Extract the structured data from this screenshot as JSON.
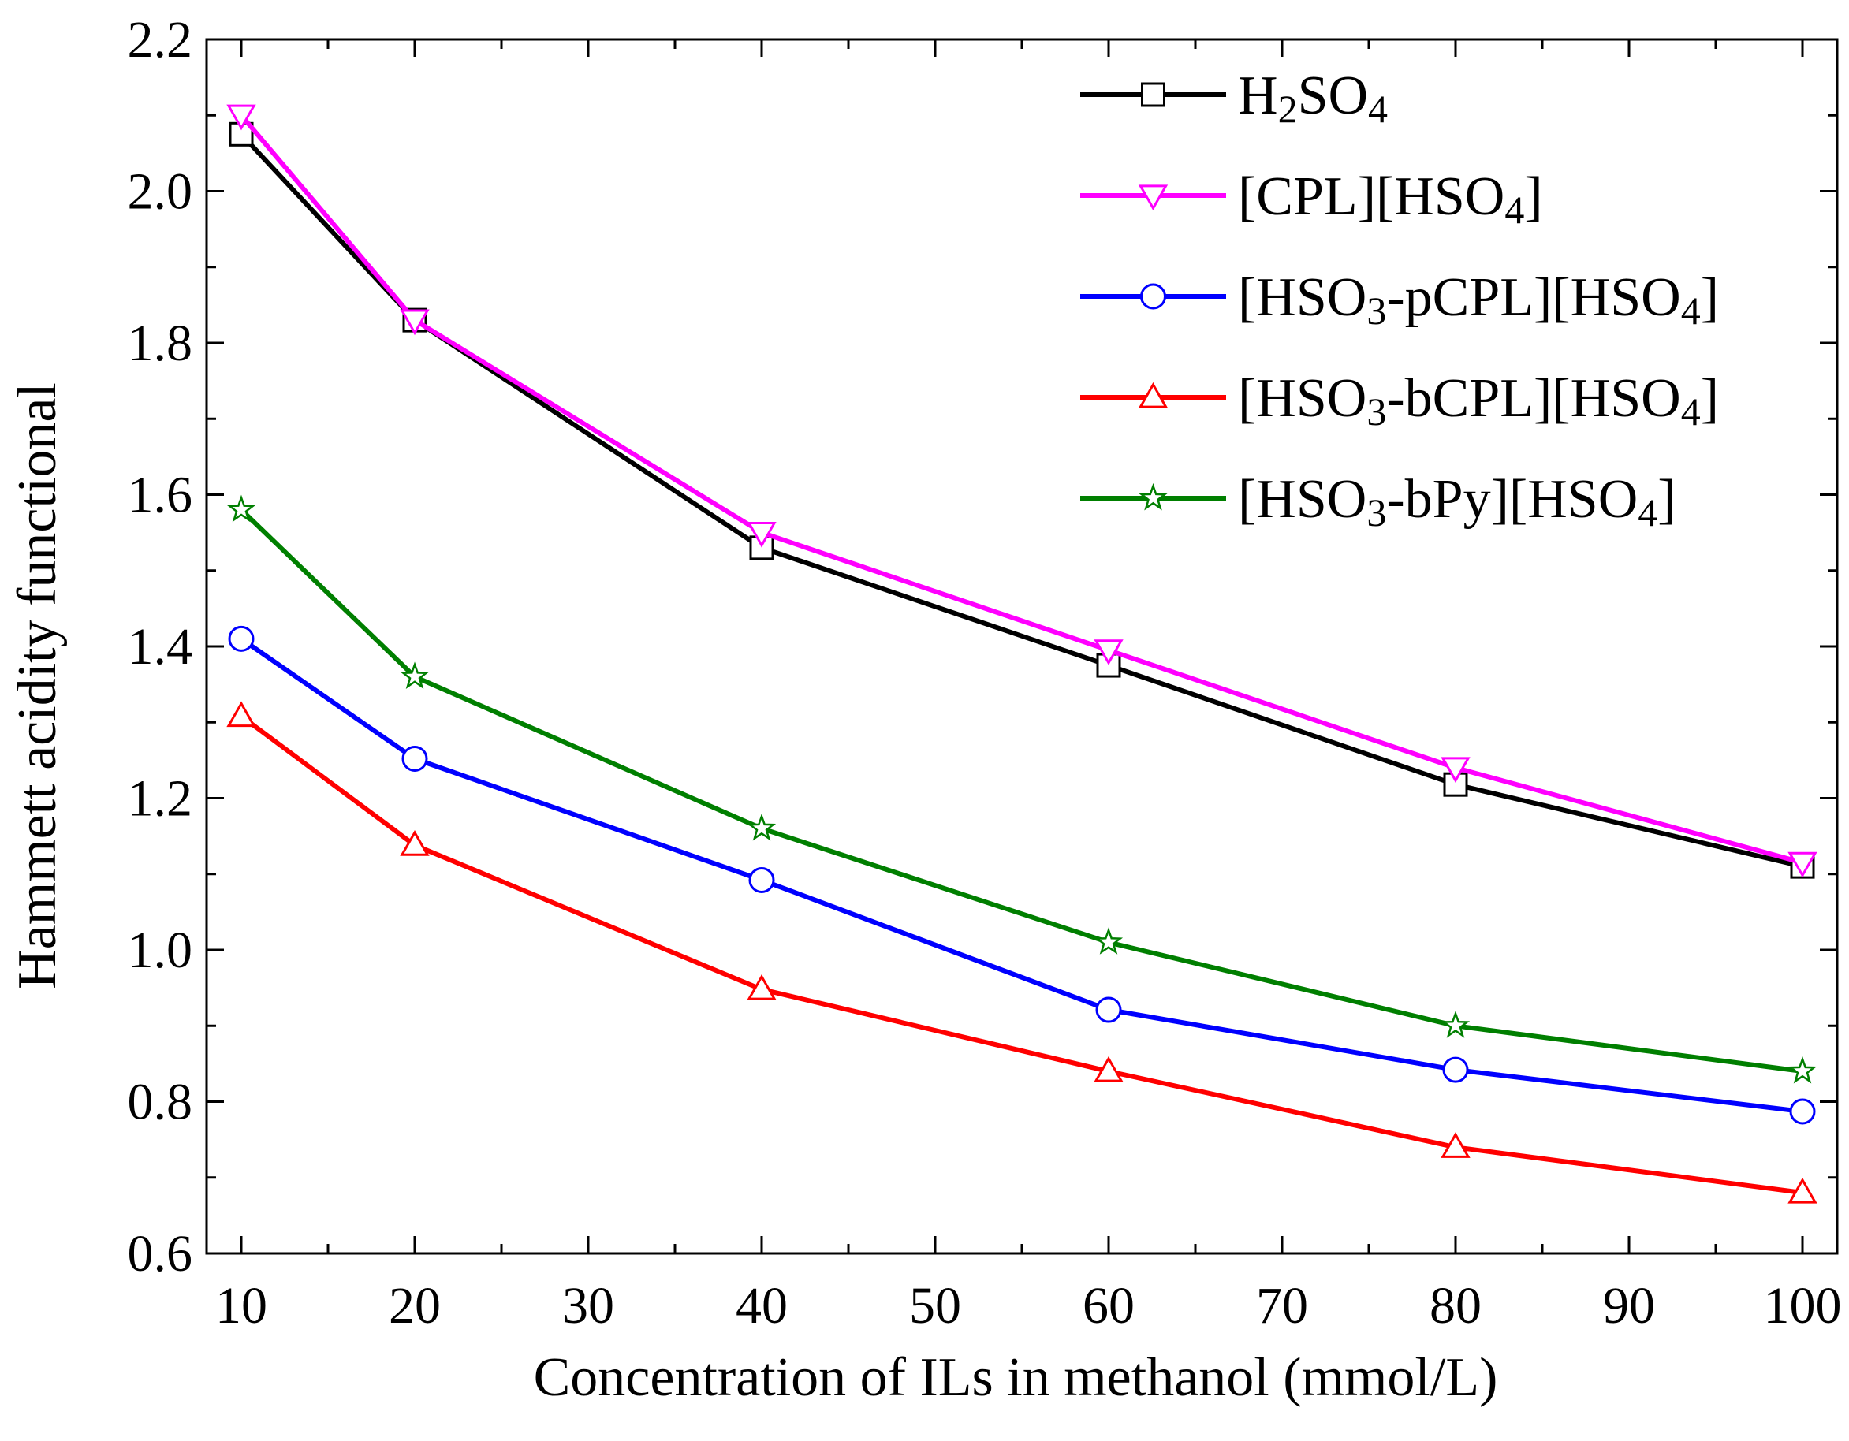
{
  "chart_data": {
    "type": "line",
    "title": "",
    "xlabel": "Concentration of ILs in methanol (mmol/L)",
    "ylabel": "Hammett acidity functional",
    "xlim": [
      8,
      102
    ],
    "ylim": [
      0.6,
      2.2
    ],
    "x_ticks": [
      10,
      20,
      30,
      40,
      50,
      60,
      70,
      80,
      90,
      100
    ],
    "y_ticks": [
      0.6,
      0.8,
      1.0,
      1.2,
      1.4,
      1.6,
      1.8,
      2.0,
      2.2
    ],
    "x_tick_labels": [
      "10",
      "20",
      "30",
      "40",
      "50",
      "60",
      "70",
      "80",
      "90",
      "100"
    ],
    "y_tick_labels": [
      "0.6",
      "0.8",
      "1.0",
      "1.2",
      "1.4",
      "1.6",
      "1.8",
      "2.0",
      "2.2"
    ],
    "x": [
      10,
      20,
      40,
      60,
      80,
      100
    ],
    "legend_position": "top-right",
    "series": [
      {
        "name": "H2SO4",
        "label_main": "H",
        "label_parts": [
          [
            "H",
            ""
          ],
          [
            "2",
            "sub"
          ],
          [
            "SO",
            ""
          ],
          [
            "4",
            "sub"
          ]
        ],
        "color": "#000000",
        "marker": "square",
        "values": [
          2.075,
          1.83,
          1.53,
          1.375,
          1.218,
          1.11
        ]
      },
      {
        "name": "[CPL][HSO4]",
        "label_parts": [
          [
            "[CPL][HSO",
            ""
          ],
          [
            "4",
            "sub"
          ],
          [
            "]",
            ""
          ]
        ],
        "color": "#ff00ff",
        "marker": "triangle-down",
        "values": [
          2.1,
          1.83,
          1.55,
          1.395,
          1.24,
          1.115
        ]
      },
      {
        "name": "[HSO3-pCPL][HSO4]",
        "label_parts": [
          [
            "[HSO",
            ""
          ],
          [
            "3",
            "sub"
          ],
          [
            "-pCPL][HSO",
            ""
          ],
          [
            "4",
            "sub"
          ],
          [
            "]",
            ""
          ]
        ],
        "color": "#0000ff",
        "marker": "circle",
        "values": [
          1.41,
          1.252,
          1.092,
          0.921,
          0.842,
          0.787
        ]
      },
      {
        "name": "[HSO3-bCPL][HSO4]",
        "label_parts": [
          [
            "[HSO",
            ""
          ],
          [
            "3",
            "sub"
          ],
          [
            "-bCPL][HSO",
            ""
          ],
          [
            "4",
            "sub"
          ],
          [
            "]",
            ""
          ]
        ],
        "color": "#ff0000",
        "marker": "triangle-up",
        "values": [
          1.308,
          1.138,
          0.948,
          0.84,
          0.74,
          0.68
        ]
      },
      {
        "name": "[HSO3-bPy][HSO4]",
        "label_parts": [
          [
            "[HSO",
            ""
          ],
          [
            "3",
            "sub"
          ],
          [
            "-bPy][HSO",
            ""
          ],
          [
            "4",
            "sub"
          ],
          [
            "]",
            ""
          ]
        ],
        "color": "#007f00",
        "marker": "star",
        "values": [
          1.58,
          1.36,
          1.16,
          1.01,
          0.9,
          0.84
        ]
      }
    ]
  }
}
